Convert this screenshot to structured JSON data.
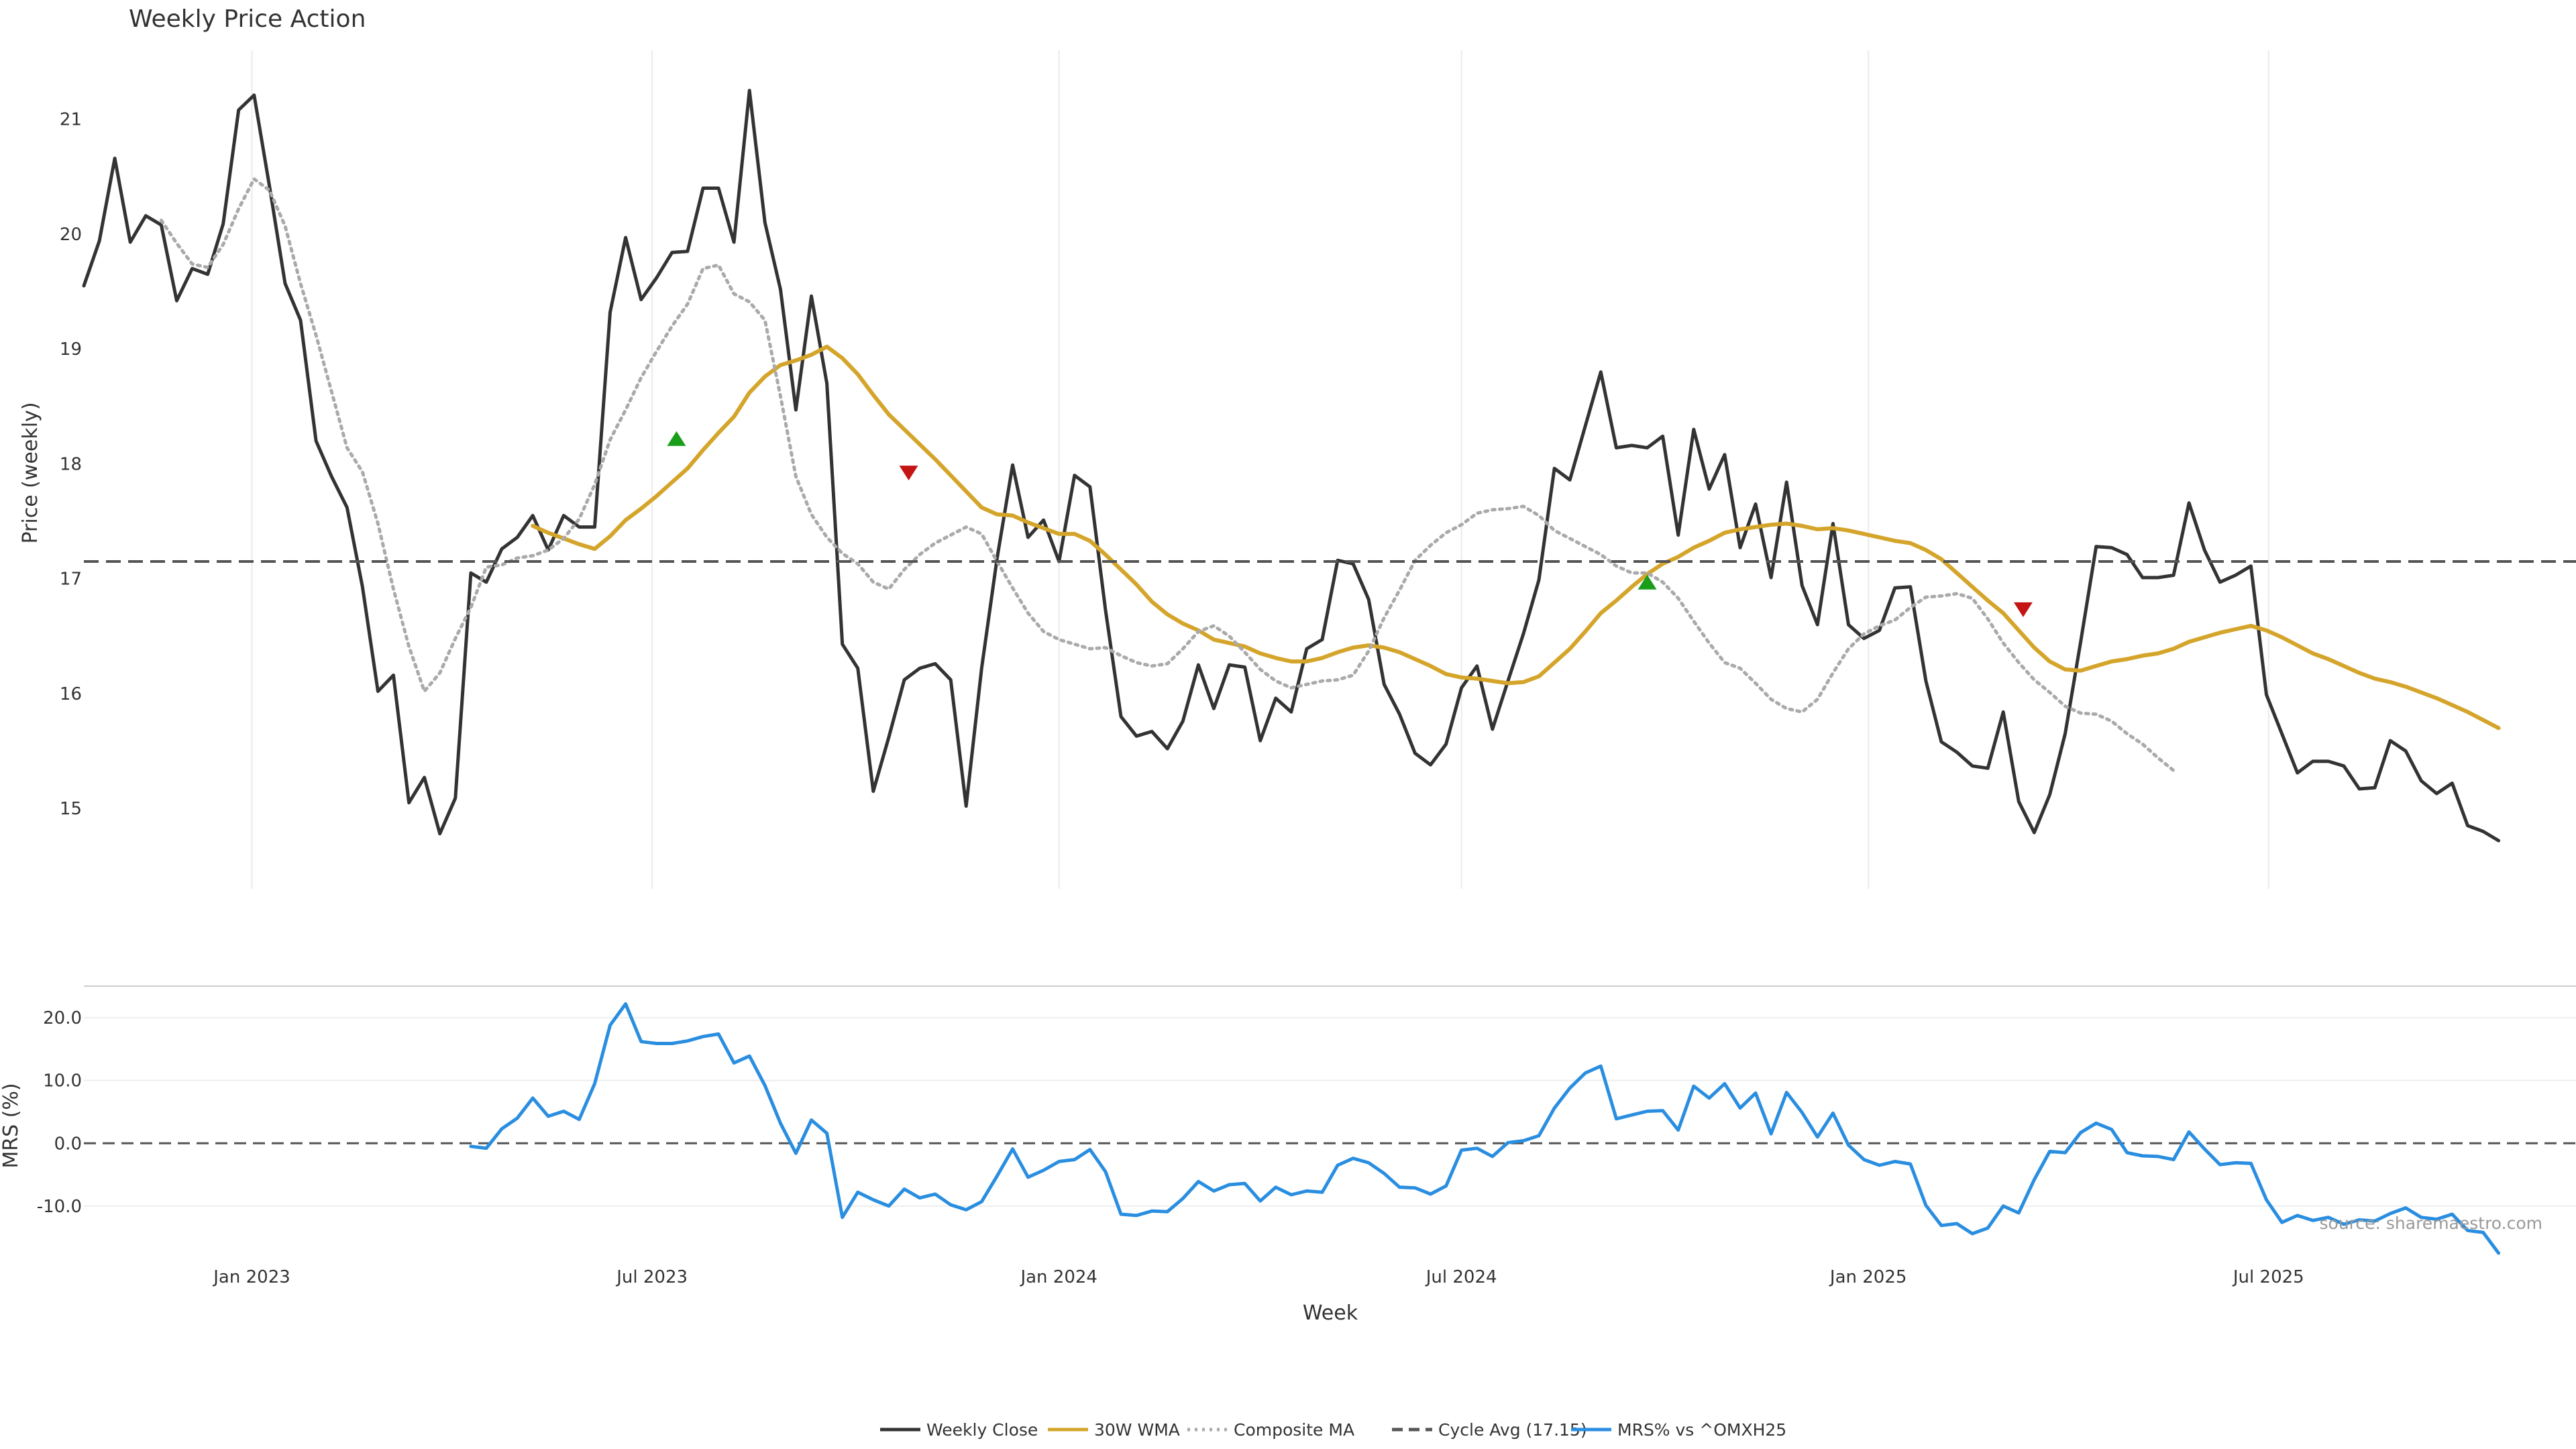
{
  "chart_data": [
    {
      "type": "line",
      "title": "Weekly Price Action",
      "xlabel": "",
      "ylabel": "Price (weekly)",
      "x_start": "2022-10-17",
      "x_step_days": 7,
      "xlim": [
        "2022-10-17",
        "2025-11-17"
      ],
      "ylim": [
        14.3,
        21.6
      ],
      "yticks": [
        15,
        16,
        17,
        18,
        19,
        20,
        21
      ],
      "x_ticks": [
        {
          "date": "2023-01-01",
          "label": "Jan 2023"
        },
        {
          "date": "2023-07-01",
          "label": "Jul 2023"
        },
        {
          "date": "2024-01-01",
          "label": "Jan 2024"
        },
        {
          "date": "2024-07-01",
          "label": "Jul 2024"
        },
        {
          "date": "2025-01-01",
          "label": "Jan 2025"
        },
        {
          "date": "2025-07-01",
          "label": "Jul 2025"
        }
      ],
      "grid": "vertical",
      "series": [
        {
          "name": "Weekly Close",
          "color": "#333333",
          "style": "solid",
          "values": [
            19.55,
            19.94,
            20.66,
            19.93,
            20.16,
            20.08,
            19.42,
            19.7,
            19.65,
            20.09,
            21.08,
            21.21,
            20.41,
            19.57,
            19.25,
            18.2,
            17.89,
            17.62,
            16.93,
            16.02,
            16.16,
            15.05,
            15.27,
            14.78,
            15.09,
            17.05,
            16.97,
            17.26,
            17.36,
            17.55,
            17.25,
            17.55,
            17.45,
            17.45,
            19.32,
            19.97,
            19.43,
            19.62,
            19.84,
            19.85,
            20.4,
            20.4,
            19.93,
            21.25,
            20.1,
            19.52,
            18.47,
            19.46,
            18.7,
            16.43,
            16.22,
            15.15,
            15.62,
            16.12,
            16.22,
            16.26,
            16.12,
            15.02,
            16.22,
            17.18,
            17.99,
            17.36,
            17.51,
            17.15,
            17.9,
            17.8,
            16.73,
            15.8,
            15.63,
            15.67,
            15.52,
            15.76,
            16.25,
            15.87,
            16.25,
            16.23,
            15.59,
            15.96,
            15.84,
            16.39,
            16.47,
            17.16,
            17.13,
            16.82,
            16.08,
            15.82,
            15.48,
            15.38,
            15.56,
            16.05,
            16.24,
            15.69,
            16.11,
            16.52,
            16.99,
            17.96,
            17.86,
            18.33,
            18.8,
            18.14,
            18.16,
            18.14,
            18.24,
            17.38,
            18.3,
            17.78,
            18.08,
            17.27,
            17.65,
            17.01,
            17.84,
            16.94,
            16.6,
            17.48,
            16.6,
            16.48,
            16.55,
            16.92,
            16.93,
            16.11,
            15.58,
            15.49,
            15.37,
            15.35,
            15.84,
            15.06,
            14.79,
            15.12,
            15.65,
            16.45,
            17.28,
            17.27,
            17.21,
            17.01,
            17.01,
            17.03,
            17.66,
            17.25,
            16.97,
            17.03,
            17.11,
            15.99,
            15.65,
            15.31,
            15.41,
            15.41,
            15.37,
            15.17,
            15.18,
            15.59,
            15.5,
            15.24,
            15.13,
            15.22,
            14.85,
            14.8,
            14.72
          ]
        },
        {
          "name": "30W WMA",
          "color": "#d4a52a",
          "style": "solid",
          "start_index": 29,
          "values": [
            17.46,
            17.4,
            17.35,
            17.3,
            17.26,
            17.37,
            17.51,
            17.61,
            17.72,
            17.84,
            17.96,
            18.12,
            18.27,
            18.41,
            18.62,
            18.76,
            18.86,
            18.9,
            18.95,
            19.02,
            18.92,
            18.78,
            18.6,
            18.43,
            18.3,
            18.17,
            18.04,
            17.9,
            17.76,
            17.62,
            17.56,
            17.55,
            17.49,
            17.44,
            17.39,
            17.39,
            17.33,
            17.21,
            17.08,
            16.95,
            16.8,
            16.69,
            16.61,
            16.55,
            16.47,
            16.44,
            16.41,
            16.35,
            16.31,
            16.28,
            16.28,
            16.31,
            16.36,
            16.4,
            16.42,
            16.4,
            16.36,
            16.3,
            16.24,
            16.17,
            16.14,
            16.13,
            16.11,
            16.09,
            16.1,
            16.15,
            16.27,
            16.39,
            16.54,
            16.7,
            16.81,
            16.93,
            17.04,
            17.13,
            17.19,
            17.27,
            17.33,
            17.4,
            17.43,
            17.45,
            17.47,
            17.48,
            17.46,
            17.43,
            17.44,
            17.42,
            17.39,
            17.36,
            17.33,
            17.31,
            17.25,
            17.17,
            17.05,
            16.93,
            16.81,
            16.7,
            16.55,
            16.4,
            16.28,
            16.21,
            16.2,
            16.24,
            16.28,
            16.3,
            16.33,
            16.35,
            16.39,
            16.45,
            16.49,
            16.53,
            16.56,
            16.59,
            16.55,
            16.49,
            16.42,
            16.35,
            16.3,
            16.24,
            16.18,
            16.13,
            16.1,
            16.06,
            16.01,
            15.96,
            15.9,
            15.84,
            15.77,
            15.7
          ]
        },
        {
          "name": "Composite MA",
          "color": "#aaaaaa",
          "style": "dotted",
          "start_index": 5,
          "values": [
            20.12,
            19.92,
            19.74,
            19.71,
            19.91,
            20.22,
            20.48,
            20.38,
            20.07,
            19.57,
            19.12,
            18.63,
            18.14,
            17.93,
            17.48,
            16.91,
            16.41,
            16.02,
            16.18,
            16.48,
            16.75,
            17.1,
            17.12,
            17.18,
            17.2,
            17.25,
            17.35,
            17.52,
            17.82,
            18.21,
            18.47,
            18.75,
            18.98,
            19.2,
            19.39,
            19.7,
            19.73,
            19.48,
            19.41,
            19.25,
            18.59,
            17.89,
            17.56,
            17.36,
            17.22,
            17.13,
            16.97,
            16.91,
            17.08,
            17.21,
            17.31,
            17.38,
            17.45,
            17.39,
            17.15,
            16.92,
            16.7,
            16.54,
            16.47,
            16.43,
            16.39,
            16.4,
            16.33,
            16.27,
            16.24,
            16.26,
            16.39,
            16.54,
            16.59,
            16.5,
            16.36,
            16.21,
            16.11,
            16.05,
            16.08,
            16.11,
            16.12,
            16.16,
            16.37,
            16.66,
            16.9,
            17.16,
            17.29,
            17.4,
            17.47,
            17.57,
            17.6,
            17.61,
            17.63,
            17.55,
            17.42,
            17.35,
            17.28,
            17.21,
            17.11,
            17.05,
            17.05,
            16.97,
            16.83,
            16.63,
            16.44,
            16.27,
            16.22,
            16.09,
            15.95,
            15.87,
            15.84,
            15.95,
            16.18,
            16.39,
            16.52,
            16.59,
            16.64,
            16.75,
            16.84,
            16.85,
            16.87,
            16.83,
            16.65,
            16.44,
            16.27,
            16.12,
            16.01,
            15.89,
            15.83,
            15.82,
            15.76,
            15.65,
            15.56,
            15.44,
            15.33
          ]
        },
        {
          "name": "Cycle Avg (17.15)",
          "color": "#555555",
          "style": "dashed",
          "value": 17.15
        }
      ],
      "signals": [
        {
          "date": "2023-07-12",
          "value": 18.22,
          "direction": "up",
          "color": "#1a9e1a"
        },
        {
          "date": "2023-10-25",
          "value": 17.92,
          "direction": "down",
          "color": "#c41414"
        },
        {
          "date": "2024-09-23",
          "value": 16.97,
          "direction": "up",
          "color": "#1a9e1a"
        },
        {
          "date": "2025-03-12",
          "value": 16.73,
          "direction": "down",
          "color": "#c41414"
        }
      ]
    },
    {
      "type": "line",
      "xlabel": "Week",
      "ylabel": "MRS (%)",
      "ylim": [
        -17.5,
        24.5
      ],
      "yticks": [
        {
          "value": 20,
          "label": "20.0"
        },
        {
          "value": 10,
          "label": "10.0"
        },
        {
          "value": 0,
          "label": "0.0"
        },
        {
          "value": -10,
          "label": "-10.0"
        }
      ],
      "reference_line": 0,
      "series": [
        {
          "name": "MRS% vs ^OMXH25",
          "color": "#2a8ee0",
          "style": "solid",
          "start_index": 25,
          "values": [
            -0.5,
            -0.8,
            2.3,
            4.0,
            7.2,
            4.3,
            5.1,
            3.8,
            9.5,
            18.8,
            22.2,
            16.2,
            15.9,
            15.9,
            16.3,
            17.0,
            17.4,
            12.8,
            13.9,
            9.2,
            3.2,
            -1.6,
            3.7,
            1.6,
            -11.8,
            -7.8,
            -9.0,
            -10.0,
            -7.3,
            -8.7,
            -8.1,
            -9.8,
            -10.6,
            -9.3,
            -5.2,
            -0.9,
            -5.4,
            -4.3,
            -2.9,
            -2.6,
            -1.0,
            -4.5,
            -11.3,
            -11.5,
            -10.8,
            -10.9,
            -8.8,
            -6.1,
            -7.6,
            -6.6,
            -6.4,
            -9.2,
            -7.0,
            -8.2,
            -7.6,
            -7.8,
            -3.5,
            -2.4,
            -3.1,
            -4.8,
            -7.0,
            -7.1,
            -8.1,
            -6.8,
            -1.1,
            -0.8,
            -2.1,
            0.1,
            0.4,
            1.2,
            5.6,
            8.8,
            11.2,
            12.3,
            3.9,
            4.5,
            5.1,
            5.2,
            2.1,
            9.1,
            7.2,
            9.5,
            5.6,
            8.0,
            1.5,
            8.1,
            4.9,
            1.0,
            4.8,
            -0.3,
            -2.6,
            -3.5,
            -2.9,
            -3.3,
            -9.9,
            -13.1,
            -12.8,
            -14.4,
            -13.5,
            -10.0,
            -11.1,
            -5.8,
            -1.3,
            -1.5,
            1.7,
            3.2,
            2.2,
            -1.5,
            -2.0,
            -2.1,
            -2.6,
            1.8,
            -0.9,
            -3.4,
            -3.1,
            -3.2,
            -9.0,
            -12.6,
            -11.5,
            -12.3,
            -11.8,
            -12.9,
            -12.2,
            -12.4,
            -11.2,
            -10.3,
            -11.8,
            -12.1,
            -11.3,
            -13.9,
            -14.2,
            -17.5
          ]
        }
      ]
    }
  ],
  "legend": {
    "position": "bottom-center",
    "items": [
      {
        "label": "Weekly Close",
        "color": "#333333",
        "style": "solid"
      },
      {
        "label": "30W WMA",
        "color": "#d4a52a",
        "style": "solid"
      },
      {
        "label": "Composite MA",
        "color": "#aaaaaa",
        "style": "dotted"
      },
      {
        "label": "Cycle Avg (17.15)",
        "color": "#555555",
        "style": "dashed"
      },
      {
        "label": "MRS% vs ^OMXH25",
        "color": "#2a8ee0",
        "style": "solid"
      }
    ]
  },
  "source_note": "source: sharemaestro.com"
}
